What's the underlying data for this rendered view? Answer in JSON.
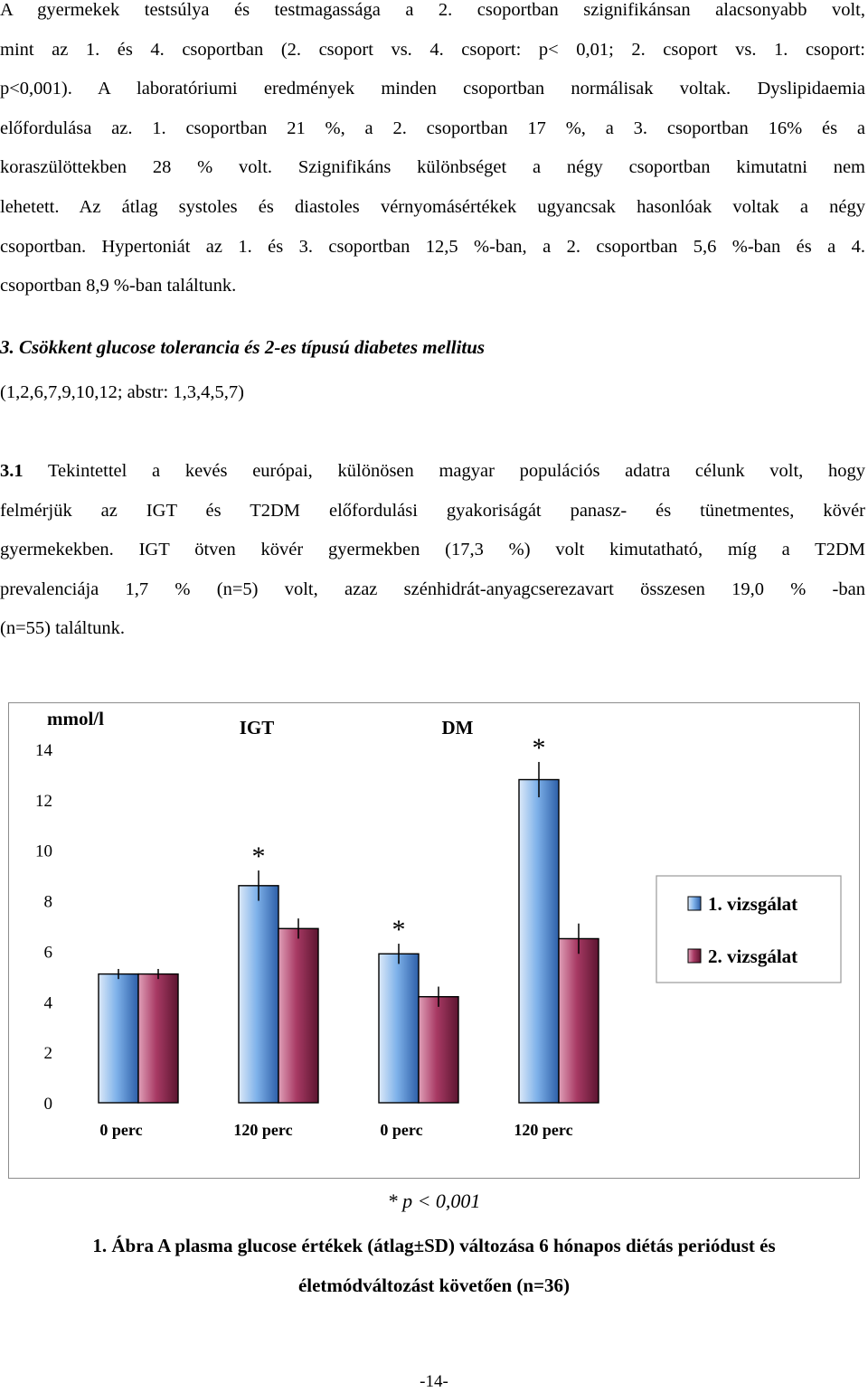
{
  "intro_paragraph": {
    "lines": [
      "A gyermekek testsúlya és testmagassága a 2. csoportban szignifikánsan alacsonyabb volt,",
      "mint az 1. és 4. csoportban (2. csoport vs. 4. csoport: p< 0,01; 2. csoport vs. 1. csoport:",
      "p<0,001). A laboratóriumi eredmények minden csoportban normálisak voltak. Dyslipidaemia",
      "előfordulása az. 1. csoportban 21 %, a 2. csoportban 17 %, a 3. csoportban 16% és a",
      "koraszülöttekben 28 % volt. Szignifikáns különbséget a négy csoportban kimutatni nem",
      "lehetett. Az átlag systoles és diastoles vérnyomásértékek ugyancsak hasonlóak voltak a négy",
      "csoportban. Hypertoniát az 1. és 3. csoportban 12,5 %-ban, a 2. csoportban 5,6 %-ban és a 4.",
      "csoportban 8,9 %-ban találtunk."
    ]
  },
  "section_heading": "3. Csökkent glucose tolerancia és 2-es típusú diabetes mellitus",
  "section_refs": "(1,2,6,7,9,10,12; abstr: 1,3,4,5,7)",
  "section_paragraph": {
    "number": "3.1",
    "lines": [
      " Tekintettel a kevés európai, különösen magyar populációs adatra célunk volt, hogy",
      "felmérjük az IGT és T2DM előfordulási gyakoriságát panasz- és tünetmentes, kövér",
      "gyermekekben. IGT ötven kövér gyermekben (17,3 %) volt kimutatható, míg a T2DM",
      "prevalenciája 1,7 % (n=5) volt, azaz szénhidrát-anyagcserezavart összesen 19,0 % -ban",
      "(n=55) találtunk."
    ]
  },
  "chart_data": {
    "type": "bar",
    "ylabel": "mmol/l",
    "ylim": [
      0,
      14
    ],
    "yticks": [
      "0",
      "2",
      "4",
      "6",
      "8",
      "10",
      "12",
      "14"
    ],
    "group_labels": [
      "IGT",
      "DM"
    ],
    "categories": [
      "0 perc",
      "120 perc",
      "0 perc",
      "120 perc"
    ],
    "series": [
      {
        "name": "1. vizsgálat",
        "values": [
          5.1,
          8.6,
          5.9,
          12.8
        ],
        "sd": [
          0.2,
          0.6,
          0.4,
          0.7
        ],
        "color": "#5b9bd5",
        "star": [
          "",
          "*",
          "*",
          "*"
        ]
      },
      {
        "name": "2. vizsgálat",
        "values": [
          5.1,
          6.9,
          4.2,
          6.5
        ],
        "sd": [
          0.2,
          0.4,
          0.4,
          0.6
        ],
        "color": "#9e2b55",
        "star": [
          "",
          "",
          "",
          ""
        ]
      }
    ],
    "legend_position": "right"
  },
  "p_note": "* p < 0,001",
  "caption_lines": [
    "1. Ábra A plasma glucose értékek (átlag±SD) változása 6 hónapos diétás periódust és",
    "életmódváltozást követően (n=36)"
  ],
  "page_number": "-14-"
}
